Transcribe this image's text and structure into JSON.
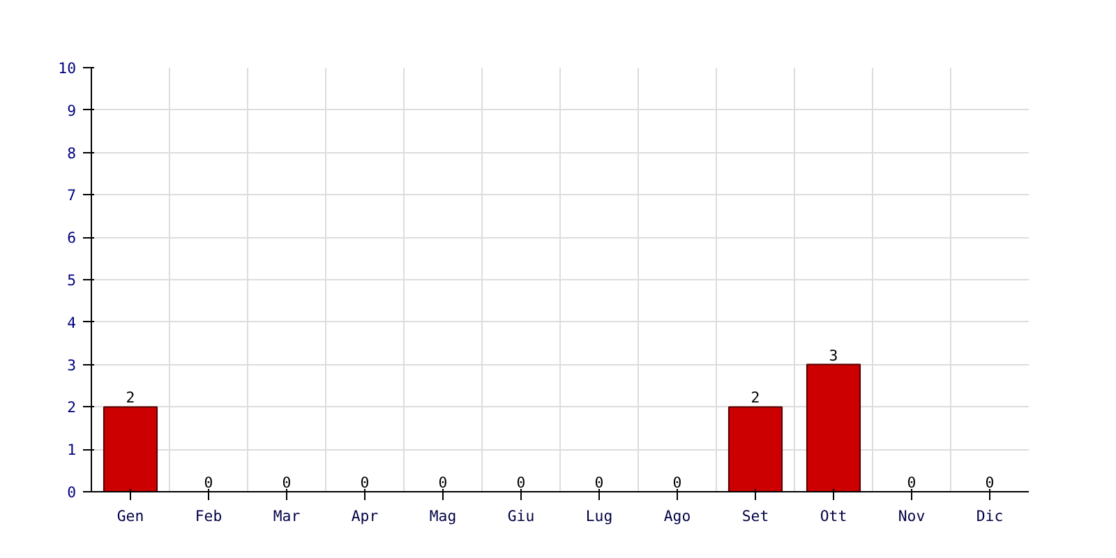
{
  "chart_data": {
    "type": "bar",
    "categories": [
      "Gen",
      "Feb",
      "Mar",
      "Apr",
      "Mag",
      "Giu",
      "Lug",
      "Ago",
      "Set",
      "Ott",
      "Nov",
      "Dic"
    ],
    "values": [
      2,
      0,
      0,
      0,
      0,
      0,
      0,
      0,
      2,
      3,
      0,
      0
    ],
    "color": "#cc0000",
    "ylim": [
      0,
      10
    ],
    "yticks": [
      0,
      1,
      2,
      3,
      4,
      5,
      6,
      7,
      8,
      9,
      10
    ],
    "grid": true,
    "data_labels": true
  }
}
